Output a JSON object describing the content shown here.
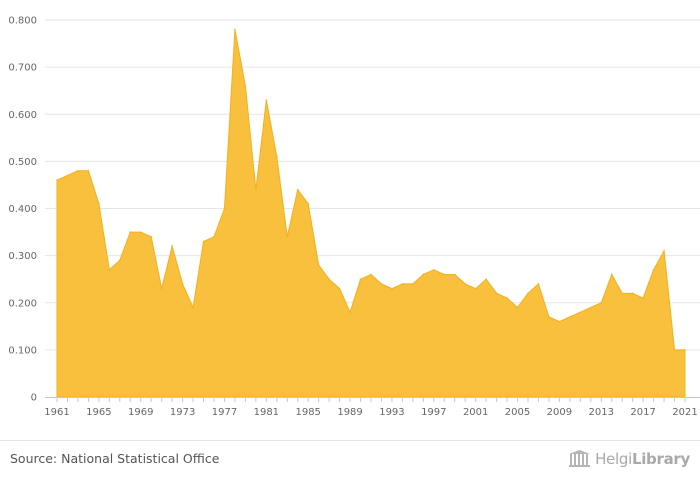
{
  "chart_data": {
    "type": "area",
    "title": "",
    "xlabel": "",
    "ylabel": "",
    "ylim": [
      0,
      0.8
    ],
    "y_ticks": [
      "0",
      "0.100",
      "0.200",
      "0.300",
      "0.400",
      "0.500",
      "0.600",
      "0.700",
      "0.800"
    ],
    "x_ticks": [
      "1961",
      "1965",
      "1969",
      "1973",
      "1977",
      "1981",
      "1985",
      "1989",
      "1993",
      "1997",
      "2001",
      "2005",
      "2009",
      "2013",
      "2017",
      "2021"
    ],
    "x": [
      1961,
      1962,
      1963,
      1964,
      1965,
      1966,
      1967,
      1968,
      1969,
      1970,
      1971,
      1972,
      1973,
      1974,
      1975,
      1976,
      1977,
      1978,
      1979,
      1980,
      1981,
      1982,
      1983,
      1984,
      1985,
      1986,
      1987,
      1988,
      1989,
      1990,
      1991,
      1992,
      1993,
      1994,
      1995,
      1996,
      1997,
      1998,
      1999,
      2000,
      2001,
      2002,
      2003,
      2004,
      2005,
      2006,
      2007,
      2008,
      2009,
      2010,
      2011,
      2012,
      2013,
      2014,
      2015,
      2016,
      2017,
      2018,
      2019,
      2020,
      2021
    ],
    "series": [
      {
        "name": "",
        "color": "#f9bd33",
        "values": [
          0.46,
          0.47,
          0.48,
          0.48,
          0.41,
          0.27,
          0.29,
          0.35,
          0.35,
          0.34,
          0.23,
          0.32,
          0.24,
          0.19,
          0.33,
          0.34,
          0.4,
          0.78,
          0.66,
          0.44,
          0.63,
          0.51,
          0.34,
          0.44,
          0.41,
          0.28,
          0.25,
          0.23,
          0.18,
          0.25,
          0.26,
          0.24,
          0.23,
          0.24,
          0.24,
          0.26,
          0.27,
          0.26,
          0.26,
          0.24,
          0.23,
          0.25,
          0.22,
          0.21,
          0.19,
          0.22,
          0.24,
          0.17,
          0.16,
          0.17,
          0.18,
          0.19,
          0.2,
          0.26,
          0.22,
          0.22,
          0.21,
          0.27,
          0.31,
          0.1,
          0.1
        ]
      }
    ],
    "grid": true
  },
  "footer": {
    "source": "Source: National Statistical Office",
    "logo_light": "Helgi",
    "logo_bold": "Library"
  }
}
